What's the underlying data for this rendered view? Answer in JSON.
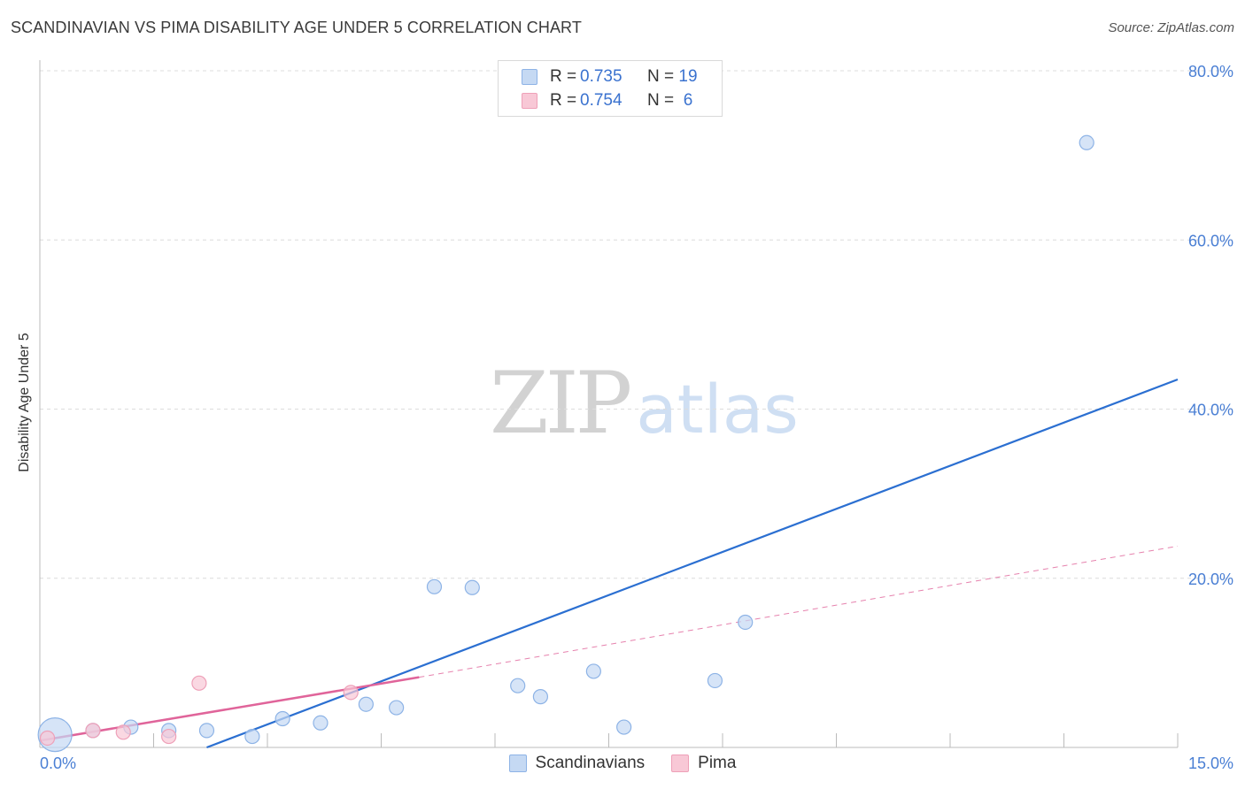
{
  "header": {
    "title": "SCANDINAVIAN VS PIMA DISABILITY AGE UNDER 5 CORRELATION CHART",
    "source": "Source: ZipAtlas.com"
  },
  "watermark": {
    "zip": "ZIP",
    "atlas": "atlas"
  },
  "legend": {
    "rows": [
      {
        "r_label": "R =",
        "r_value": "0.735",
        "n_label": "N =",
        "n_value": "19"
      },
      {
        "r_label": "R =",
        "r_value": "0.754",
        "n_label": "N =",
        "n_value": "6"
      }
    ]
  },
  "bottom_legend": {
    "series1": "Scandinavians",
    "series2": "Pima"
  },
  "colors": {
    "blue_fill": "#c5d9f3",
    "blue_stroke": "#8db3e6",
    "blue_line": "#2b6fd1",
    "pink_fill": "#f8c8d6",
    "pink_stroke": "#eea0b8",
    "pink_line": "#e0649a",
    "grid": "#dcdcdc",
    "tick_text": "#4a7fd4"
  },
  "chart_data": {
    "type": "scatter",
    "title": "SCANDINAVIAN VS PIMA DISABILITY AGE UNDER 5 CORRELATION CHART",
    "xlabel": "",
    "ylabel": "Disability Age Under 5",
    "xlim": [
      0,
      15
    ],
    "ylim": [
      0,
      80
    ],
    "x_tick_labels": [
      "0.0%",
      "15.0%"
    ],
    "y_ticks": [
      20,
      40,
      60,
      80
    ],
    "y_tick_labels": [
      "20.0%",
      "40.0%",
      "60.0%",
      "80.0%"
    ],
    "series": [
      {
        "name": "Scandinavians",
        "R": 0.735,
        "N": 19,
        "points": [
          {
            "x": 0.2,
            "y": 1.5,
            "size": "large"
          },
          {
            "x": 0.7,
            "y": 2.0
          },
          {
            "x": 1.2,
            "y": 2.4
          },
          {
            "x": 1.7,
            "y": 2.0
          },
          {
            "x": 2.2,
            "y": 2.0
          },
          {
            "x": 2.8,
            "y": 1.3
          },
          {
            "x": 3.2,
            "y": 3.4
          },
          {
            "x": 3.7,
            "y": 2.9
          },
          {
            "x": 4.3,
            "y": 5.1
          },
          {
            "x": 4.7,
            "y": 4.7
          },
          {
            "x": 5.2,
            "y": 19.0
          },
          {
            "x": 5.7,
            "y": 18.9
          },
          {
            "x": 6.3,
            "y": 7.3
          },
          {
            "x": 6.6,
            "y": 6.0
          },
          {
            "x": 7.3,
            "y": 9.0
          },
          {
            "x": 7.7,
            "y": 2.4
          },
          {
            "x": 8.9,
            "y": 7.9
          },
          {
            "x": 9.3,
            "y": 14.8
          },
          {
            "x": 13.8,
            "y": 71.5
          }
        ],
        "trend": {
          "x": [
            2.2,
            15.0
          ],
          "y": [
            0.0,
            43.5
          ]
        }
      },
      {
        "name": "Pima",
        "R": 0.754,
        "N": 6,
        "points": [
          {
            "x": 0.1,
            "y": 1.1
          },
          {
            "x": 0.7,
            "y": 2.0
          },
          {
            "x": 1.1,
            "y": 1.8
          },
          {
            "x": 1.7,
            "y": 1.3
          },
          {
            "x": 2.1,
            "y": 7.6
          },
          {
            "x": 4.1,
            "y": 6.5
          }
        ],
        "trend": {
          "x": [
            0.0,
            5.0
          ],
          "y": [
            0.8,
            8.3
          ]
        },
        "trend_extension": {
          "x": [
            5.0,
            15.0
          ],
          "y": [
            8.3,
            23.8
          ]
        }
      }
    ]
  }
}
